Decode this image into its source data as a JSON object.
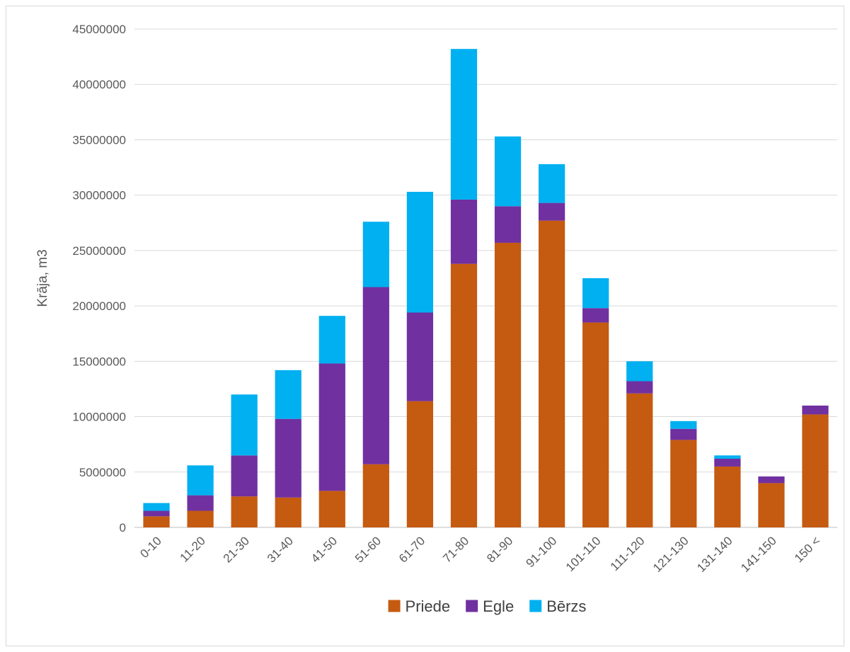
{
  "chart_data": {
    "type": "bar",
    "stacked": true,
    "title": "",
    "xlabel": "",
    "ylabel": "Krāja, m3",
    "ylim": [
      0,
      45000000
    ],
    "yticks": [
      0,
      5000000,
      10000000,
      15000000,
      20000000,
      25000000,
      30000000,
      35000000,
      40000000,
      45000000
    ],
    "grid": true,
    "legend": "bottom",
    "categories": [
      "0-10",
      "11-20",
      "21-30",
      "31-40",
      "41-50",
      "51-60",
      "61-70",
      "71-80",
      "81-90",
      "91-100",
      "101-110",
      "111-120",
      "121-130",
      "131-140",
      "141-150",
      "150 <"
    ],
    "series": [
      {
        "name": "Priede",
        "color": "#c55a11",
        "values": [
          1000000,
          1500000,
          2800000,
          2700000,
          3300000,
          5700000,
          11400000,
          23800000,
          25700000,
          27700000,
          18500000,
          12100000,
          7900000,
          5500000,
          4000000,
          10200000
        ]
      },
      {
        "name": "Egle",
        "color": "#7030a0",
        "values": [
          500000,
          1400000,
          3700000,
          7100000,
          11500000,
          16000000,
          8000000,
          5800000,
          3300000,
          1600000,
          1300000,
          1100000,
          1000000,
          700000,
          600000,
          800000
        ]
      },
      {
        "name": "Bērzs",
        "color": "#00b0f0",
        "values": [
          700000,
          2700000,
          5500000,
          4400000,
          4300000,
          5900000,
          10900000,
          13600000,
          6300000,
          3500000,
          2700000,
          1800000,
          700000,
          300000,
          0,
          0
        ]
      }
    ]
  }
}
